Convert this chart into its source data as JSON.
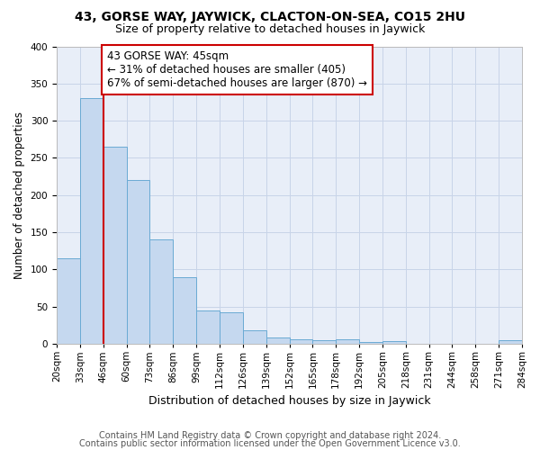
{
  "title1": "43, GORSE WAY, JAYWICK, CLACTON-ON-SEA, CO15 2HU",
  "title2": "Size of property relative to detached houses in Jaywick",
  "xlabel": "Distribution of detached houses by size in Jaywick",
  "ylabel": "Number of detached properties",
  "footnote1": "Contains HM Land Registry data © Crown copyright and database right 2024.",
  "footnote2": "Contains public sector information licensed under the Open Government Licence v3.0.",
  "annotation_line1": "43 GORSE WAY: 45sqm",
  "annotation_line2": "← 31% of detached houses are smaller (405)",
  "annotation_line3": "67% of semi-detached houses are larger (870) →",
  "bar_values": [
    115,
    330,
    265,
    220,
    140,
    90,
    45,
    42,
    18,
    8,
    6,
    5,
    6,
    3,
    4,
    0,
    0,
    0,
    0,
    5
  ],
  "categories": [
    "20sqm",
    "33sqm",
    "46sqm",
    "60sqm",
    "73sqm",
    "86sqm",
    "99sqm",
    "112sqm",
    "126sqm",
    "139sqm",
    "152sqm",
    "165sqm",
    "178sqm",
    "192sqm",
    "205sqm",
    "218sqm",
    "231sqm",
    "244sqm",
    "258sqm",
    "271sqm",
    "284sqm"
  ],
  "bar_color": "#c5d8ef",
  "bar_edge_color": "#6aaad4",
  "vline_color": "#cc0000",
  "vline_x_index": 2,
  "ylim": [
    0,
    400
  ],
  "yticks": [
    0,
    50,
    100,
    150,
    200,
    250,
    300,
    350,
    400
  ],
  "grid_color": "#c8d4e8",
  "bg_color": "#e8eef8",
  "annotation_box_color": "#ffffff",
  "annotation_box_edge": "#cc0000",
  "title1_fontsize": 10,
  "title2_fontsize": 9,
  "xlabel_fontsize": 9,
  "ylabel_fontsize": 8.5,
  "tick_fontsize": 7.5,
  "footnote_fontsize": 7,
  "annotation_fontsize": 8.5
}
